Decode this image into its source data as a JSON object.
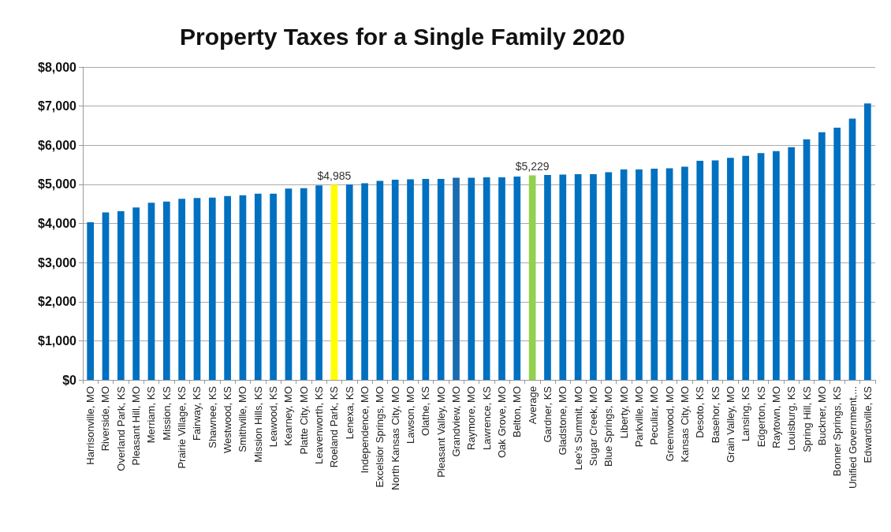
{
  "chart_data": {
    "type": "bar",
    "title": "Property Taxes for a Single Family 2020",
    "categories": [
      "Harrisonville, MO",
      "Riverside, MO",
      "Overland Park, KS",
      "Pleasant Hill, MO",
      "Merriam, KS",
      "Mission, KS",
      "Prairie Village, KS",
      "Fairway, KS",
      "Shawnee, KS",
      "Westwood, KS",
      "Smithville, MO",
      "Mission Hills, KS",
      "Leawood, KS",
      "Kearney, MO",
      "Platte City, MO",
      "Leavenworth, KS",
      "Roeland Park, KS",
      "Lenexa, KS",
      "Independence, MO",
      "Excelsior Springs, MO",
      "North Kansas City, MO",
      "Lawson, MO",
      "Olathe, KS",
      "Pleasant Valley, MO",
      "Grandview, MO",
      "Raymore, MO",
      "Lawrence, KS",
      "Oak Grove, MO",
      "Belton, MO",
      "Average",
      "Gardner, KS",
      "Gladstone, MO",
      "Lee's Summit, MO",
      "Sugar Creek, MO",
      "Blue Springs, MO",
      "Liberty, MO",
      "Parkville, MO",
      "Peculiar, MO",
      "Greenwood, MO",
      "Kansas City, MO",
      "Desoto, KS",
      "Basehor, KS",
      "Grain Valley, MO",
      "Lansing, KS",
      "Edgerton, KS",
      "Raytown, MO",
      "Louisburg, KS",
      "Spring Hill, KS",
      "Buckner, MO",
      "Bonner Springs, KS",
      "Unified Government,...",
      "Edwardsville, KS"
    ],
    "values": [
      4030,
      4280,
      4310,
      4410,
      4530,
      4560,
      4630,
      4650,
      4660,
      4700,
      4720,
      4760,
      4760,
      4890,
      4900,
      4970,
      4985,
      5000,
      5030,
      5090,
      5120,
      5130,
      5140,
      5140,
      5170,
      5170,
      5180,
      5180,
      5200,
      5229,
      5240,
      5250,
      5260,
      5260,
      5310,
      5380,
      5380,
      5400,
      5410,
      5450,
      5600,
      5610,
      5680,
      5730,
      5800,
      5850,
      5950,
      6150,
      6330,
      6450,
      6680,
      7070
    ],
    "value_labels": [
      null,
      null,
      null,
      null,
      null,
      null,
      null,
      null,
      null,
      null,
      null,
      null,
      null,
      null,
      null,
      null,
      "$4,985",
      null,
      null,
      null,
      null,
      null,
      null,
      null,
      null,
      null,
      null,
      null,
      null,
      "$5,229",
      null,
      null,
      null,
      null,
      null,
      null,
      null,
      null,
      null,
      null,
      null,
      null,
      null,
      null,
      null,
      null,
      null,
      null,
      null,
      null,
      null,
      null
    ],
    "colors": [
      "#0070c0",
      "#0070c0",
      "#0070c0",
      "#0070c0",
      "#0070c0",
      "#0070c0",
      "#0070c0",
      "#0070c0",
      "#0070c0",
      "#0070c0",
      "#0070c0",
      "#0070c0",
      "#0070c0",
      "#0070c0",
      "#0070c0",
      "#0070c0",
      "#ffff00",
      "#0070c0",
      "#0070c0",
      "#0070c0",
      "#0070c0",
      "#0070c0",
      "#0070c0",
      "#0070c0",
      "#1a6bb0",
      "#0070c0",
      "#0070c0",
      "#0070c0",
      "#0070c0",
      "#92d050",
      "#0070c0",
      "#0070c0",
      "#0070c0",
      "#0070c0",
      "#0070c0",
      "#0070c0",
      "#0070c0",
      "#0070c0",
      "#0070c0",
      "#0070c0",
      "#0070c0",
      "#0070c0",
      "#0070c0",
      "#0070c0",
      "#0070c0",
      "#0070c0",
      "#0070c0",
      "#0070c0",
      "#0070c0",
      "#0070c0",
      "#0070c0",
      "#0070c0"
    ],
    "ylim": [
      0,
      8000
    ],
    "yticks": [
      {
        "value": 0,
        "label": "$0"
      },
      {
        "value": 1000,
        "label": "$1,000"
      },
      {
        "value": 2000,
        "label": "$2,000"
      },
      {
        "value": 3000,
        "label": "$3,000"
      },
      {
        "value": 4000,
        "label": "$4,000"
      },
      {
        "value": 5000,
        "label": "$5,000"
      },
      {
        "value": 6000,
        "label": "$6,000"
      },
      {
        "value": 7000,
        "label": "$7,000"
      },
      {
        "value": 8000,
        "label": "$8,000"
      }
    ],
    "grid": "y"
  }
}
